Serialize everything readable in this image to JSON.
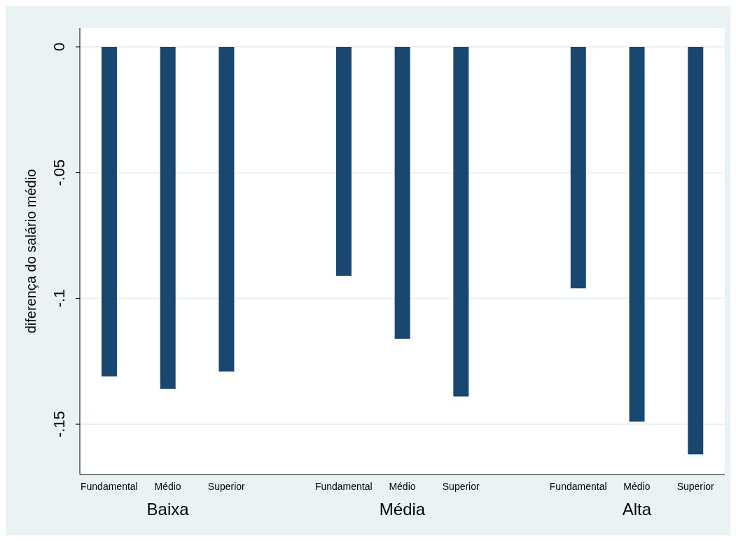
{
  "chart_data": {
    "type": "bar",
    "ylabel": "diferença do salário médio",
    "categories": [
      "Fundamental",
      "Médio",
      "Superior",
      "Fundamental",
      "Médio",
      "Superior",
      "Fundamental",
      "Médio",
      "Superior"
    ],
    "values": [
      -0.131,
      -0.136,
      -0.129,
      -0.091,
      -0.116,
      -0.139,
      -0.096,
      -0.149,
      -0.162
    ],
    "color": "#1a476f",
    "ylim": [
      -0.17,
      0.0075
    ],
    "yticks": [
      {
        "value": 0,
        "label": "0"
      },
      {
        "value": -0.05,
        "label": "-.05"
      },
      {
        "value": -0.1,
        "label": "-.1"
      },
      {
        "value": -0.15,
        "label": "-.15"
      }
    ],
    "grid": "y",
    "annotations": [
      "Baixa",
      "Média",
      "Alta"
    ]
  }
}
